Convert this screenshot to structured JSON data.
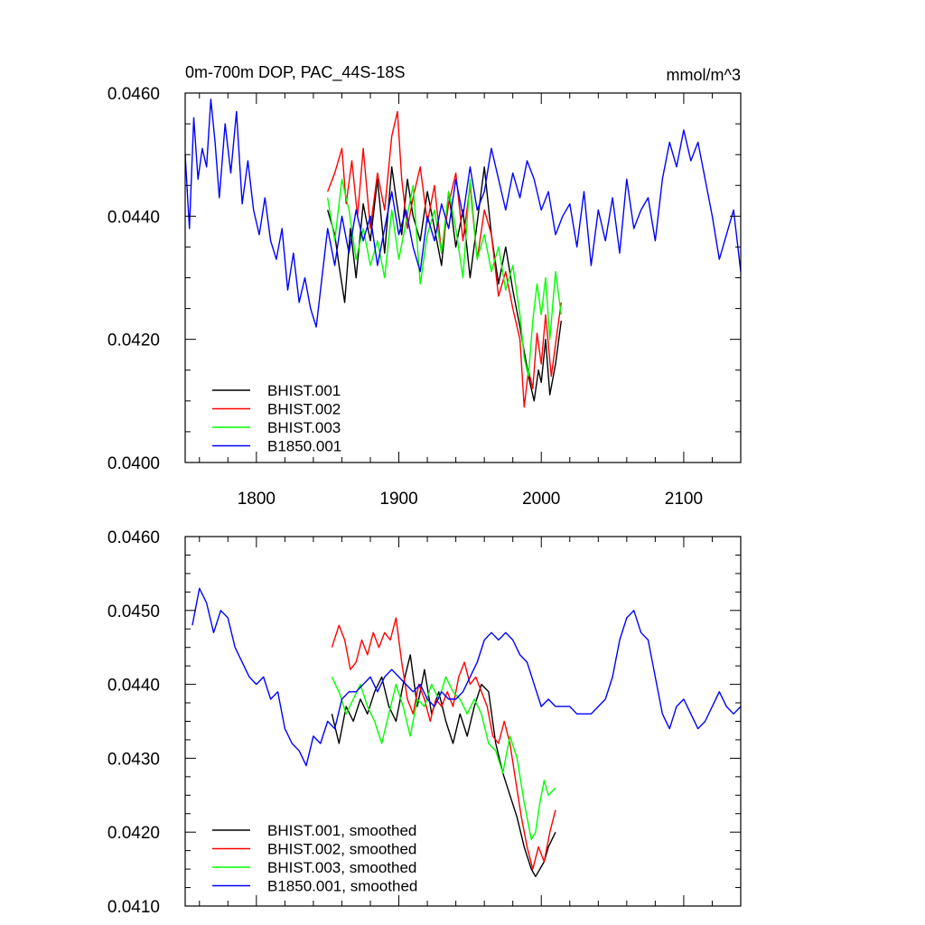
{
  "chart_data": [
    {
      "type": "line",
      "title": "0m-700m DOP, PAC_44S-18S",
      "units": "mmol/m^3",
      "xlim": [
        1750,
        2140
      ],
      "ylim": [
        0.04,
        0.046
      ],
      "xticks": [
        1800,
        1900,
        2000,
        2100
      ],
      "xtick_labels": [
        "1800",
        "1900",
        "2000",
        "2100"
      ],
      "yticks": [
        0.04,
        0.042,
        0.044,
        0.046
      ],
      "ytick_labels": [
        "0.0400",
        "0.0420",
        "0.0440",
        "0.0460"
      ],
      "legend_position": "bottom-left",
      "series": [
        {
          "name": "BHIST.001",
          "color": "#000000",
          "x": [
            1850,
            1855,
            1858,
            1862,
            1866,
            1870,
            1875,
            1880,
            1885,
            1890,
            1895,
            1898,
            1902,
            1906,
            1910,
            1915,
            1920,
            1925,
            1930,
            1935,
            1940,
            1945,
            1950,
            1955,
            1960,
            1965,
            1970,
            1975,
            1980,
            1985,
            1988,
            1992,
            1995,
            1998,
            2000,
            2003,
            2006,
            2010,
            2014
          ],
          "y": [
            0.0441,
            0.0437,
            0.0432,
            0.0426,
            0.0438,
            0.043,
            0.0442,
            0.0436,
            0.0446,
            0.0434,
            0.0448,
            0.0443,
            0.0437,
            0.0446,
            0.044,
            0.0436,
            0.0444,
            0.0438,
            0.0432,
            0.0444,
            0.0435,
            0.0441,
            0.043,
            0.0439,
            0.0448,
            0.0437,
            0.0429,
            0.0435,
            0.0428,
            0.0422,
            0.0418,
            0.0413,
            0.041,
            0.0415,
            0.0413,
            0.042,
            0.0411,
            0.0416,
            0.0423
          ]
        },
        {
          "name": "BHIST.002",
          "color": "#ff0000",
          "x": [
            1850,
            1855,
            1860,
            1863,
            1867,
            1871,
            1875,
            1880,
            1885,
            1890,
            1895,
            1899,
            1902,
            1906,
            1910,
            1915,
            1920,
            1925,
            1930,
            1935,
            1940,
            1945,
            1950,
            1955,
            1960,
            1965,
            1970,
            1975,
            1980,
            1985,
            1988,
            1991,
            1994,
            1997,
            2000,
            2003,
            2007,
            2011,
            2014
          ],
          "y": [
            0.0444,
            0.0447,
            0.0451,
            0.0442,
            0.0449,
            0.044,
            0.0451,
            0.0438,
            0.0447,
            0.0441,
            0.0453,
            0.0457,
            0.0446,
            0.0438,
            0.0443,
            0.0448,
            0.0439,
            0.0445,
            0.0434,
            0.0442,
            0.0447,
            0.0436,
            0.0445,
            0.0433,
            0.0441,
            0.0437,
            0.0427,
            0.0431,
            0.0425,
            0.042,
            0.0409,
            0.0415,
            0.0412,
            0.0421,
            0.0416,
            0.0424,
            0.0414,
            0.0421,
            0.0426
          ]
        },
        {
          "name": "BHIST.003",
          "color": "#00ff00",
          "x": [
            1850,
            1855,
            1860,
            1865,
            1870,
            1875,
            1880,
            1885,
            1890,
            1895,
            1900,
            1905,
            1910,
            1915,
            1920,
            1925,
            1930,
            1935,
            1940,
            1945,
            1950,
            1955,
            1960,
            1965,
            1970,
            1975,
            1980,
            1985,
            1988,
            1991,
            1994,
            1997,
            2000,
            2003,
            2006,
            2010,
            2014
          ],
          "y": [
            0.0443,
            0.0436,
            0.0446,
            0.0441,
            0.0433,
            0.0438,
            0.0432,
            0.0436,
            0.043,
            0.0441,
            0.0433,
            0.0439,
            0.0445,
            0.0429,
            0.0437,
            0.0441,
            0.0434,
            0.0444,
            0.0438,
            0.043,
            0.0446,
            0.0433,
            0.0437,
            0.0431,
            0.0435,
            0.0428,
            0.0432,
            0.0424,
            0.0417,
            0.0414,
            0.0423,
            0.0429,
            0.0424,
            0.043,
            0.042,
            0.0431,
            0.0424
          ]
        },
        {
          "name": "B1850.001",
          "color": "#0000ff",
          "x": [
            1750,
            1753,
            1756,
            1759,
            1762,
            1765,
            1768,
            1771,
            1774,
            1778,
            1782,
            1786,
            1790,
            1794,
            1798,
            1802,
            1806,
            1810,
            1814,
            1818,
            1822,
            1826,
            1830,
            1834,
            1838,
            1842,
            1846,
            1850,
            1855,
            1860,
            1865,
            1870,
            1875,
            1880,
            1885,
            1890,
            1895,
            1900,
            1905,
            1910,
            1915,
            1920,
            1925,
            1930,
            1935,
            1940,
            1945,
            1950,
            1955,
            1960,
            1965,
            1970,
            1975,
            1980,
            1985,
            1990,
            1995,
            2000,
            2005,
            2010,
            2015,
            2020,
            2025,
            2030,
            2035,
            2040,
            2045,
            2050,
            2055,
            2060,
            2065,
            2070,
            2075,
            2080,
            2085,
            2090,
            2095,
            2100,
            2105,
            2110,
            2115,
            2120,
            2125,
            2130,
            2135,
            2140
          ],
          "y": [
            0.045,
            0.0438,
            0.0456,
            0.0446,
            0.0451,
            0.0448,
            0.0459,
            0.0452,
            0.0443,
            0.0455,
            0.0447,
            0.0457,
            0.0442,
            0.0449,
            0.0441,
            0.0437,
            0.0443,
            0.0436,
            0.0433,
            0.0438,
            0.0428,
            0.0434,
            0.0426,
            0.043,
            0.0425,
            0.0422,
            0.043,
            0.0438,
            0.0432,
            0.044,
            0.0434,
            0.0441,
            0.0436,
            0.044,
            0.0432,
            0.0438,
            0.0444,
            0.0437,
            0.0441,
            0.0435,
            0.0431,
            0.044,
            0.0436,
            0.0442,
            0.0438,
            0.0446,
            0.044,
            0.0448,
            0.0441,
            0.0444,
            0.0451,
            0.0446,
            0.0441,
            0.0447,
            0.0443,
            0.0449,
            0.0446,
            0.0441,
            0.0444,
            0.0437,
            0.044,
            0.0442,
            0.0435,
            0.0444,
            0.0432,
            0.0441,
            0.0436,
            0.0443,
            0.0434,
            0.0446,
            0.0438,
            0.0441,
            0.0443,
            0.0436,
            0.0446,
            0.0452,
            0.0448,
            0.0454,
            0.0449,
            0.0452,
            0.0446,
            0.044,
            0.0433,
            0.0437,
            0.0441,
            0.0431
          ]
        }
      ]
    },
    {
      "type": "line",
      "xlim": [
        1750,
        2140
      ],
      "ylim": [
        0.041,
        0.046
      ],
      "xticks": [
        1800,
        1900,
        2000,
        2100
      ],
      "yticks": [
        0.041,
        0.042,
        0.043,
        0.044,
        0.045,
        0.046
      ],
      "ytick_labels": [
        "0.0410",
        "0.0420",
        "0.0430",
        "0.0440",
        "0.0450",
        "0.0460"
      ],
      "legend_position": "bottom-left",
      "series": [
        {
          "name": "BHIST.001, smoothed",
          "color": "#000000",
          "x": [
            1853,
            1858,
            1863,
            1868,
            1873,
            1878,
            1883,
            1888,
            1893,
            1898,
            1903,
            1908,
            1913,
            1918,
            1923,
            1928,
            1933,
            1938,
            1943,
            1948,
            1953,
            1958,
            1963,
            1968,
            1973,
            1978,
            1983,
            1988,
            1993,
            1996,
            1999,
            2002,
            2005,
            2010
          ],
          "y": [
            0.0436,
            0.0432,
            0.0437,
            0.0435,
            0.0438,
            0.0436,
            0.0439,
            0.0441,
            0.0437,
            0.0435,
            0.044,
            0.0444,
            0.0437,
            0.0442,
            0.0436,
            0.0439,
            0.0435,
            0.0432,
            0.0436,
            0.0433,
            0.0437,
            0.044,
            0.0439,
            0.0432,
            0.0428,
            0.0425,
            0.0422,
            0.0418,
            0.0415,
            0.0414,
            0.0415,
            0.0416,
            0.0418,
            0.042
          ]
        },
        {
          "name": "BHIST.002, smoothed",
          "color": "#ff0000",
          "x": [
            1853,
            1858,
            1862,
            1866,
            1870,
            1874,
            1878,
            1882,
            1886,
            1890,
            1894,
            1898,
            1902,
            1906,
            1910,
            1914,
            1918,
            1922,
            1926,
            1930,
            1934,
            1938,
            1942,
            1946,
            1950,
            1954,
            1958,
            1962,
            1966,
            1970,
            1974,
            1978,
            1982,
            1986,
            1990,
            1994,
            1998,
            2002,
            2006,
            2010
          ],
          "y": [
            0.0445,
            0.0448,
            0.0446,
            0.0442,
            0.0443,
            0.0446,
            0.0444,
            0.0447,
            0.0445,
            0.0447,
            0.0446,
            0.0449,
            0.0443,
            0.0438,
            0.0436,
            0.044,
            0.0438,
            0.0435,
            0.0438,
            0.0437,
            0.0439,
            0.0437,
            0.0441,
            0.0443,
            0.044,
            0.0441,
            0.0439,
            0.0437,
            0.0433,
            0.0432,
            0.0435,
            0.0432,
            0.0427,
            0.0422,
            0.0418,
            0.0415,
            0.0418,
            0.0416,
            0.042,
            0.0423
          ]
        },
        {
          "name": "BHIST.003, smoothed",
          "color": "#00ff00",
          "x": [
            1853,
            1858,
            1863,
            1868,
            1873,
            1878,
            1883,
            1888,
            1893,
            1898,
            1903,
            1908,
            1913,
            1918,
            1923,
            1928,
            1933,
            1938,
            1943,
            1948,
            1953,
            1958,
            1963,
            1968,
            1973,
            1978,
            1983,
            1988,
            1993,
            1996,
            1999,
            2002,
            2005,
            2010
          ],
          "y": [
            0.0441,
            0.0439,
            0.0436,
            0.0438,
            0.044,
            0.0437,
            0.0435,
            0.0432,
            0.0436,
            0.044,
            0.0437,
            0.0433,
            0.0438,
            0.0437,
            0.044,
            0.0438,
            0.0441,
            0.0439,
            0.0438,
            0.0436,
            0.0438,
            0.0436,
            0.0432,
            0.0431,
            0.0428,
            0.0433,
            0.043,
            0.0424,
            0.0419,
            0.042,
            0.0424,
            0.0427,
            0.0425,
            0.0426
          ]
        },
        {
          "name": "B1850.001, smoothed",
          "color": "#0000ff",
          "x": [
            1755,
            1760,
            1765,
            1770,
            1775,
            1780,
            1785,
            1790,
            1795,
            1800,
            1805,
            1810,
            1815,
            1820,
            1825,
            1830,
            1835,
            1840,
            1845,
            1850,
            1855,
            1860,
            1865,
            1870,
            1875,
            1880,
            1885,
            1890,
            1895,
            1900,
            1905,
            1910,
            1915,
            1920,
            1925,
            1930,
            1935,
            1940,
            1945,
            1950,
            1955,
            1960,
            1965,
            1970,
            1975,
            1980,
            1985,
            1990,
            1995,
            2000,
            2005,
            2010,
            2015,
            2020,
            2025,
            2030,
            2035,
            2040,
            2045,
            2050,
            2055,
            2060,
            2065,
            2070,
            2075,
            2080,
            2085,
            2090,
            2095,
            2100,
            2105,
            2110,
            2115,
            2120,
            2125,
            2130,
            2135,
            2140
          ],
          "y": [
            0.0448,
            0.0453,
            0.0451,
            0.0447,
            0.045,
            0.0449,
            0.0445,
            0.0443,
            0.0441,
            0.044,
            0.0441,
            0.0438,
            0.0439,
            0.0434,
            0.0432,
            0.0431,
            0.0429,
            0.0433,
            0.0432,
            0.0435,
            0.0434,
            0.0438,
            0.0439,
            0.0439,
            0.044,
            0.0441,
            0.0439,
            0.0441,
            0.0442,
            0.0441,
            0.044,
            0.0439,
            0.044,
            0.0438,
            0.0437,
            0.0439,
            0.0438,
            0.0438,
            0.0439,
            0.0441,
            0.0443,
            0.0446,
            0.0447,
            0.0446,
            0.0447,
            0.0446,
            0.0444,
            0.0443,
            0.044,
            0.0437,
            0.0438,
            0.0437,
            0.0437,
            0.0437,
            0.0436,
            0.0436,
            0.0436,
            0.0437,
            0.0438,
            0.0441,
            0.0446,
            0.0449,
            0.045,
            0.0447,
            0.0446,
            0.0441,
            0.0436,
            0.0434,
            0.0437,
            0.0438,
            0.0436,
            0.0434,
            0.0435,
            0.0437,
            0.0439,
            0.0437,
            0.0436,
            0.0437
          ]
        }
      ]
    }
  ]
}
